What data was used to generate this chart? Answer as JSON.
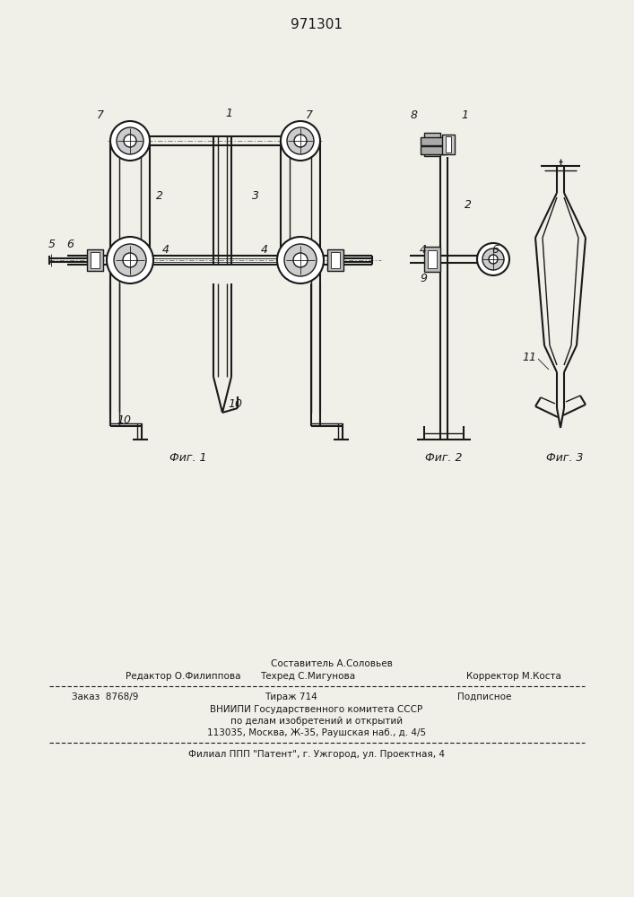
{
  "patent_number": "971301",
  "bg_color": "#f0efe8",
  "line_color": "#1a1a1a",
  "fig_width": 7.07,
  "fig_height": 10.0,
  "dpi": 100,
  "footer": {
    "line1_center": "Составитель А.Соловьев",
    "line2_left": "Редактор О.Филиппова",
    "line2_center": "Техред С.Мигунова",
    "line2_right": "Корректор М.Коста",
    "line3_left": "Заказ  8768/9",
    "line3_center": "Тираж 714",
    "line3_right": "Подписное",
    "line4": "ВНИИПИ Государственного комитета СССР",
    "line5": "по делам изобретений и открытий",
    "line6": "113035, Москва, Ж-35, Раушская наб., д. 4/5",
    "line7": "Филиал ППП \"Патент\", г. Ужгород, ул. Проектная, 4"
  }
}
